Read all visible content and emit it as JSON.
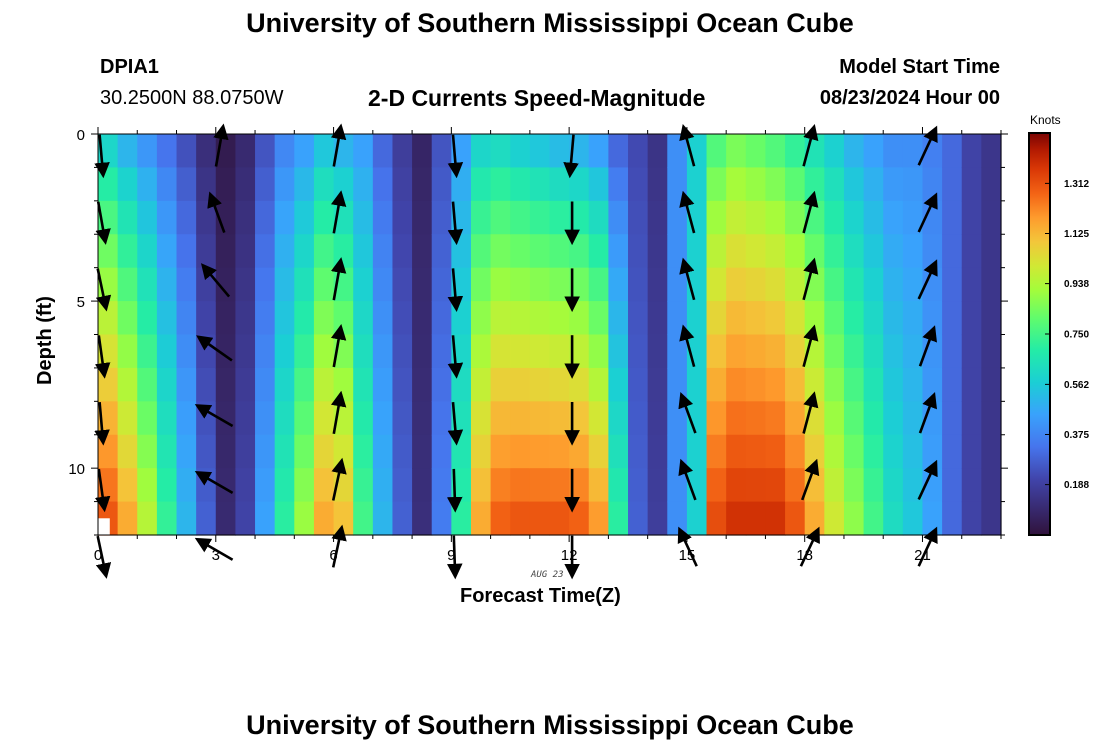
{
  "page": {
    "title": "University of Southern Mississippi Ocean Cube",
    "station": "DPIA1",
    "coords": "30.2500N  88.0750W",
    "subtitle": "2-D Currents Speed-Magnitude",
    "model_start_label": "Model Start Time",
    "model_start_value": "08/23/2024 Hour 00",
    "footer_title": "University of Southern Mississippi Ocean Cube"
  },
  "chart_data": {
    "type": "heatmap",
    "title": "2-D Currents Speed-Magnitude",
    "xlabel": "Forecast Time(Z)",
    "ylabel": "Depth (ft)",
    "date_label": "AUG 23",
    "xlim": [
      0,
      23
    ],
    "ylim": [
      0,
      12
    ],
    "x_ticks": [
      0,
      3,
      6,
      9,
      12,
      15,
      18,
      21
    ],
    "y_ticks": [
      0,
      5,
      10
    ],
    "colorbar": {
      "title": "Knots",
      "ticks": [
        "0.188",
        "0.375",
        "0.562",
        "0.750",
        "0.938",
        "1.125",
        "1.312"
      ],
      "range": [
        0,
        1.5
      ]
    },
    "speed_columns": [
      {
        "t": 0.0,
        "top": 0.6,
        "bottom": 1.3
      },
      {
        "t": 0.5,
        "top": 0.5,
        "bottom": 1.15
      },
      {
        "t": 1.0,
        "top": 0.42,
        "bottom": 0.95
      },
      {
        "t": 1.5,
        "top": 0.33,
        "bottom": 0.72
      },
      {
        "t": 2.0,
        "top": 0.24,
        "bottom": 0.5
      },
      {
        "t": 2.5,
        "top": 0.12,
        "bottom": 0.28
      },
      {
        "t": 3.0,
        "top": 0.04,
        "bottom": 0.1
      },
      {
        "t": 3.5,
        "top": 0.1,
        "bottom": 0.2
      },
      {
        "t": 4.0,
        "top": 0.25,
        "bottom": 0.45
      },
      {
        "t": 4.5,
        "top": 0.38,
        "bottom": 0.7
      },
      {
        "t": 5.0,
        "top": 0.45,
        "bottom": 0.9
      },
      {
        "t": 5.5,
        "top": 0.55,
        "bottom": 1.15
      },
      {
        "t": 6.0,
        "top": 0.5,
        "bottom": 1.1
      },
      {
        "t": 6.5,
        "top": 0.45,
        "bottom": 0.75
      },
      {
        "t": 7.0,
        "top": 0.3,
        "bottom": 0.5
      },
      {
        "t": 7.5,
        "top": 0.18,
        "bottom": 0.28
      },
      {
        "t": 8.0,
        "top": 0.08,
        "bottom": 0.12
      },
      {
        "t": 8.5,
        "top": 0.25,
        "bottom": 0.35
      },
      {
        "t": 9.0,
        "top": 0.45,
        "bottom": 0.7
      },
      {
        "t": 9.5,
        "top": 0.6,
        "bottom": 1.15
      },
      {
        "t": 10.0,
        "top": 0.62,
        "bottom": 1.28
      },
      {
        "t": 10.5,
        "top": 0.58,
        "bottom": 1.3
      },
      {
        "t": 11.0,
        "top": 0.55,
        "bottom": 1.3
      },
      {
        "t": 11.5,
        "top": 0.52,
        "bottom": 1.3
      },
      {
        "t": 12.0,
        "top": 0.5,
        "bottom": 1.28
      },
      {
        "t": 12.5,
        "top": 0.45,
        "bottom": 1.18
      },
      {
        "t": 13.0,
        "top": 0.3,
        "bottom": 0.7
      },
      {
        "t": 13.5,
        "top": 0.22,
        "bottom": 0.28
      },
      {
        "t": 14.0,
        "top": 0.14,
        "bottom": 0.18
      },
      {
        "t": 14.5,
        "top": 0.4,
        "bottom": 0.4
      },
      {
        "t": 15.0,
        "top": 0.58,
        "bottom": 0.58
      },
      {
        "t": 15.5,
        "top": 0.78,
        "bottom": 1.32
      },
      {
        "t": 16.0,
        "top": 0.85,
        "bottom": 1.38
      },
      {
        "t": 16.5,
        "top": 0.82,
        "bottom": 1.38
      },
      {
        "t": 17.0,
        "top": 0.78,
        "bottom": 1.38
      },
      {
        "t": 17.5,
        "top": 0.72,
        "bottom": 1.3
      },
      {
        "t": 18.0,
        "top": 0.65,
        "bottom": 1.15
      },
      {
        "t": 18.5,
        "top": 0.58,
        "bottom": 1.0
      },
      {
        "t": 19.0,
        "top": 0.5,
        "bottom": 0.88
      },
      {
        "t": 19.5,
        "top": 0.45,
        "bottom": 0.75
      },
      {
        "t": 20.0,
        "top": 0.4,
        "bottom": 0.62
      },
      {
        "t": 20.5,
        "top": 0.4,
        "bottom": 0.55
      },
      {
        "t": 21.0,
        "top": 0.36,
        "bottom": 0.45
      },
      {
        "t": 21.5,
        "top": 0.3,
        "bottom": 0.3
      },
      {
        "t": 22.0,
        "top": 0.2,
        "bottom": 0.2
      },
      {
        "t": 22.5,
        "top": 0.15,
        "bottom": 0.15
      }
    ],
    "vectors": [
      {
        "t": 0,
        "angles": [
          175,
          170,
          168,
          172,
          175,
          172,
          168
        ]
      },
      {
        "t": 3,
        "angles": [
          10,
          340,
          320,
          305,
          300,
          300,
          300
        ]
      },
      {
        "t": 6,
        "angles": [
          10,
          10,
          10,
          10,
          10,
          12,
          12
        ]
      },
      {
        "t": 9,
        "angles": [
          175,
          175,
          175,
          175,
          175,
          178,
          178
        ]
      },
      {
        "t": 12,
        "angles": [
          185,
          180,
          180,
          180,
          180,
          180,
          180
        ]
      },
      {
        "t": 15,
        "angles": [
          345,
          345,
          345,
          345,
          340,
          340,
          335
        ]
      },
      {
        "t": 18,
        "angles": [
          15,
          15,
          15,
          15,
          15,
          20,
          25
        ]
      },
      {
        "t": 21,
        "angles": [
          25,
          25,
          25,
          20,
          20,
          25,
          25
        ]
      }
    ]
  }
}
